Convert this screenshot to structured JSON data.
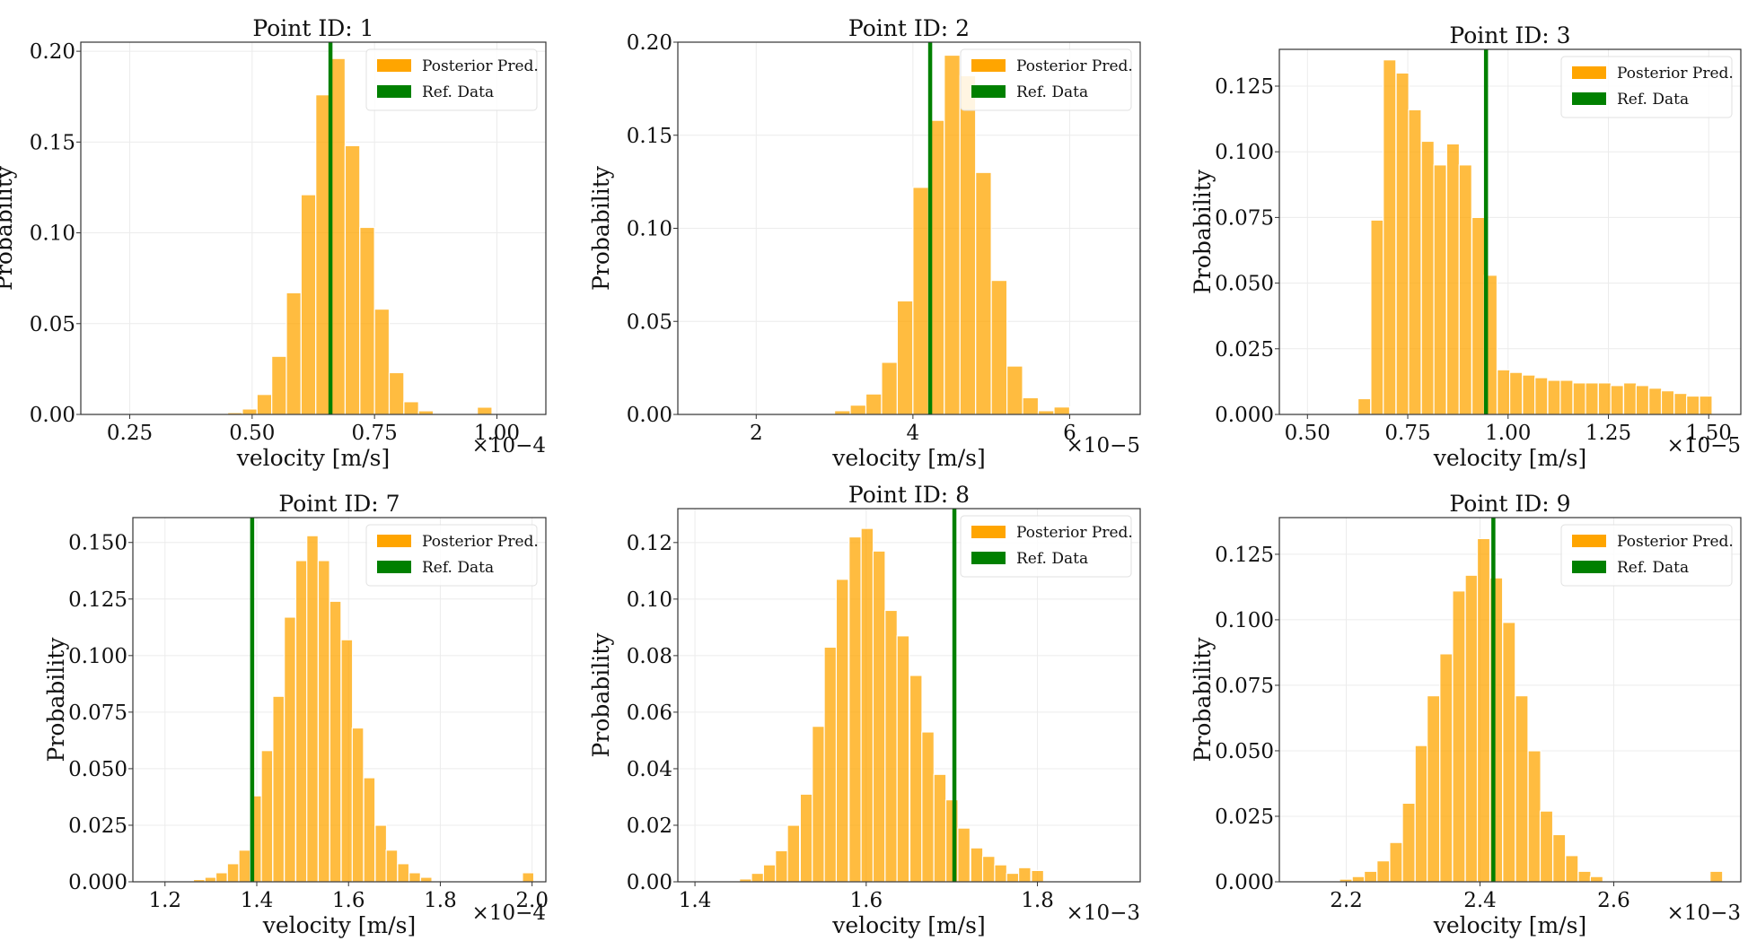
{
  "figure": {
    "colors": {
      "posterior": "#ffa500",
      "reference": "#008000"
    },
    "legend": {
      "posterior_label": "Posterior Pred.",
      "reference_label": "Ref. Data",
      "placement": "top-right"
    }
  },
  "chart_data": [
    {
      "type": "bar",
      "title": "Point ID: 1",
      "xlabel": "velocity [m/s]",
      "ylabel": "Probability",
      "multiplier": "×10−4",
      "xlim": [
        0.15,
        1.1
      ],
      "ylim": [
        0,
        0.205
      ],
      "xticks": [
        {
          "v": 0.25,
          "t": "0.25"
        },
        {
          "v": 0.5,
          "t": "0.50"
        },
        {
          "v": 0.75,
          "t": "0.75"
        },
        {
          "v": 1.0,
          "t": "1.00"
        }
      ],
      "yticks": [
        {
          "v": 0,
          "t": "0.00"
        },
        {
          "v": 0.05,
          "t": "0.05"
        },
        {
          "v": 0.1,
          "t": "0.10"
        },
        {
          "v": 0.15,
          "t": "0.15"
        },
        {
          "v": 0.2,
          "t": "0.20"
        }
      ],
      "bin_width": 0.03,
      "bins": [
        [
          0.45,
          0.001
        ],
        [
          0.48,
          0.003
        ],
        [
          0.51,
          0.011
        ],
        [
          0.54,
          0.032
        ],
        [
          0.57,
          0.067
        ],
        [
          0.6,
          0.121
        ],
        [
          0.63,
          0.176
        ],
        [
          0.66,
          0.196
        ],
        [
          0.69,
          0.148
        ],
        [
          0.72,
          0.103
        ],
        [
          0.75,
          0.058
        ],
        [
          0.78,
          0.023
        ],
        [
          0.81,
          0.007
        ],
        [
          0.84,
          0.002
        ],
        [
          0.96,
          0.004
        ]
      ],
      "reference": 0.66,
      "grid": true,
      "grid_x": [
        0.25,
        0.5,
        0.75,
        1.0
      ],
      "grid_y": [
        0.05,
        0.1,
        0.15,
        0.2
      ]
    },
    {
      "type": "bar",
      "title": "Point ID: 2",
      "xlabel": "velocity [m/s]",
      "ylabel": "Probability",
      "multiplier": "×10−5",
      "xlim": [
        1.0,
        6.9
      ],
      "ylim": [
        0,
        0.2
      ],
      "xticks": [
        {
          "v": 2,
          "t": "2"
        },
        {
          "v": 4,
          "t": "4"
        },
        {
          "v": 6,
          "t": "6"
        }
      ],
      "yticks": [
        {
          "v": 0,
          "t": "0.00"
        },
        {
          "v": 0.05,
          "t": "0.05"
        },
        {
          "v": 0.1,
          "t": "0.10"
        },
        {
          "v": 0.15,
          "t": "0.15"
        },
        {
          "v": 0.2,
          "t": "0.20"
        }
      ],
      "bin_width": 0.2,
      "bins": [
        [
          3.0,
          0.002
        ],
        [
          3.2,
          0.005
        ],
        [
          3.4,
          0.011
        ],
        [
          3.6,
          0.028
        ],
        [
          3.8,
          0.061
        ],
        [
          4.0,
          0.122
        ],
        [
          4.2,
          0.158
        ],
        [
          4.4,
          0.193
        ],
        [
          4.6,
          0.182
        ],
        [
          4.8,
          0.13
        ],
        [
          5.0,
          0.072
        ],
        [
          5.2,
          0.026
        ],
        [
          5.4,
          0.009
        ],
        [
          5.6,
          0.002
        ],
        [
          5.8,
          0.004
        ]
      ],
      "reference": 4.22,
      "grid": true,
      "grid_x": [
        2,
        4,
        6
      ],
      "grid_y": [
        0.05,
        0.1,
        0.15,
        0.2
      ]
    },
    {
      "type": "bar",
      "title": "Point ID: 3",
      "xlabel": "velocity [m/s]",
      "ylabel": "Probability",
      "multiplier": "×10−5",
      "xlim": [
        0.43,
        1.58
      ],
      "ylim": [
        0,
        0.139
      ],
      "xticks": [
        {
          "v": 0.5,
          "t": "0.50"
        },
        {
          "v": 0.75,
          "t": "0.75"
        },
        {
          "v": 1.0,
          "t": "1.00"
        },
        {
          "v": 1.25,
          "t": "1.25"
        },
        {
          "v": 1.5,
          "t": "1.50"
        }
      ],
      "yticks": [
        {
          "v": 0,
          "t": "0.000"
        },
        {
          "v": 0.025,
          "t": "0.025"
        },
        {
          "v": 0.05,
          "t": "0.050"
        },
        {
          "v": 0.075,
          "t": "0.075"
        },
        {
          "v": 0.1,
          "t": "0.100"
        },
        {
          "v": 0.125,
          "t": "0.125"
        }
      ],
      "bin_width": 0.0315,
      "bins": [
        [
          0.626,
          0.006
        ],
        [
          0.658,
          0.074
        ],
        [
          0.689,
          0.135
        ],
        [
          0.721,
          0.13
        ],
        [
          0.752,
          0.116
        ],
        [
          0.784,
          0.104
        ],
        [
          0.815,
          0.095
        ],
        [
          0.847,
          0.103
        ],
        [
          0.878,
          0.095
        ],
        [
          0.91,
          0.075
        ],
        [
          0.941,
          0.053
        ],
        [
          0.973,
          0.017
        ],
        [
          1.004,
          0.016
        ],
        [
          1.036,
          0.015
        ],
        [
          1.067,
          0.014
        ],
        [
          1.099,
          0.013
        ],
        [
          1.13,
          0.013
        ],
        [
          1.162,
          0.012
        ],
        [
          1.193,
          0.012
        ],
        [
          1.225,
          0.012
        ],
        [
          1.256,
          0.011
        ],
        [
          1.288,
          0.012
        ],
        [
          1.319,
          0.011
        ],
        [
          1.351,
          0.01
        ],
        [
          1.382,
          0.009
        ],
        [
          1.414,
          0.008
        ],
        [
          1.445,
          0.007
        ],
        [
          1.477,
          0.007
        ]
      ],
      "reference": 0.945,
      "grid": true,
      "grid_x": [
        0.5,
        0.75,
        1.0,
        1.25,
        1.5
      ],
      "grid_y": [
        0.025,
        0.05,
        0.075,
        0.1,
        0.125
      ]
    },
    {
      "type": "bar",
      "title": "Point ID: 7",
      "xlabel": "velocity [m/s]",
      "ylabel": "Probability",
      "multiplier": "×10−4",
      "xlim": [
        1.13,
        2.03
      ],
      "ylim": [
        0,
        0.161
      ],
      "xticks": [
        {
          "v": 1.2,
          "t": "1.2"
        },
        {
          "v": 1.4,
          "t": "1.4"
        },
        {
          "v": 1.6,
          "t": "1.6"
        },
        {
          "v": 1.8,
          "t": "1.8"
        },
        {
          "v": 2.0,
          "t": "2.0"
        }
      ],
      "yticks": [
        {
          "v": 0,
          "t": "0.000"
        },
        {
          "v": 0.025,
          "t": "0.025"
        },
        {
          "v": 0.05,
          "t": "0.050"
        },
        {
          "v": 0.075,
          "t": "0.075"
        },
        {
          "v": 0.1,
          "t": "0.100"
        },
        {
          "v": 0.125,
          "t": "0.125"
        },
        {
          "v": 0.15,
          "t": "0.150"
        }
      ],
      "bin_width": 0.0247,
      "bins": [
        [
          1.262,
          0.001
        ],
        [
          1.287,
          0.002
        ],
        [
          1.311,
          0.004
        ],
        [
          1.336,
          0.008
        ],
        [
          1.361,
          0.014
        ],
        [
          1.386,
          0.038
        ],
        [
          1.41,
          0.058
        ],
        [
          1.435,
          0.082
        ],
        [
          1.46,
          0.117
        ],
        [
          1.485,
          0.142
        ],
        [
          1.509,
          0.153
        ],
        [
          1.534,
          0.142
        ],
        [
          1.559,
          0.124
        ],
        [
          1.584,
          0.107
        ],
        [
          1.608,
          0.068
        ],
        [
          1.633,
          0.046
        ],
        [
          1.658,
          0.025
        ],
        [
          1.682,
          0.014
        ],
        [
          1.707,
          0.008
        ],
        [
          1.732,
          0.004
        ],
        [
          1.757,
          0.002
        ],
        [
          1.979,
          0.004
        ]
      ],
      "reference": 1.39,
      "grid": true,
      "grid_x": [
        1.2,
        1.4,
        1.6,
        1.8,
        2.0
      ],
      "grid_y": [
        0.025,
        0.05,
        0.075,
        0.1,
        0.125,
        0.15
      ]
    },
    {
      "type": "bar",
      "title": "Point ID: 8",
      "xlabel": "velocity [m/s]",
      "ylabel": "Probability",
      "multiplier": "×10−3",
      "xlim": [
        1.38,
        1.92
      ],
      "ylim": [
        0,
        0.132
      ],
      "xticks": [
        {
          "v": 1.4,
          "t": "1.4"
        },
        {
          "v": 1.6,
          "t": "1.6"
        },
        {
          "v": 1.8,
          "t": "1.8"
        }
      ],
      "yticks": [
        {
          "v": 0,
          "t": "0.00"
        },
        {
          "v": 0.02,
          "t": "0.02"
        },
        {
          "v": 0.04,
          "t": "0.04"
        },
        {
          "v": 0.06,
          "t": "0.06"
        },
        {
          "v": 0.08,
          "t": "0.08"
        },
        {
          "v": 0.1,
          "t": "0.10"
        },
        {
          "v": 0.12,
          "t": "0.12"
        }
      ],
      "bin_width": 0.0142,
      "bins": [
        [
          1.452,
          0.001
        ],
        [
          1.466,
          0.003
        ],
        [
          1.48,
          0.006
        ],
        [
          1.494,
          0.011
        ],
        [
          1.508,
          0.02
        ],
        [
          1.523,
          0.031
        ],
        [
          1.537,
          0.055
        ],
        [
          1.551,
          0.083
        ],
        [
          1.565,
          0.107
        ],
        [
          1.58,
          0.122
        ],
        [
          1.594,
          0.125
        ],
        [
          1.608,
          0.117
        ],
        [
          1.622,
          0.096
        ],
        [
          1.636,
          0.087
        ],
        [
          1.651,
          0.073
        ],
        [
          1.665,
          0.053
        ],
        [
          1.679,
          0.038
        ],
        [
          1.693,
          0.029
        ],
        [
          1.707,
          0.019
        ],
        [
          1.722,
          0.012
        ],
        [
          1.736,
          0.009
        ],
        [
          1.75,
          0.006
        ],
        [
          1.764,
          0.003
        ],
        [
          1.778,
          0.005
        ],
        [
          1.793,
          0.004
        ]
      ],
      "reference": 1.703,
      "grid": true,
      "grid_x": [
        1.4,
        1.6,
        1.8
      ],
      "grid_y": [
        0.02,
        0.04,
        0.06,
        0.08,
        0.1,
        0.12
      ]
    },
    {
      "type": "bar",
      "title": "Point ID: 9",
      "xlabel": "velocity [m/s]",
      "ylabel": "Probability",
      "multiplier": "×10−3",
      "xlim": [
        2.1,
        2.79
      ],
      "ylim": [
        0,
        0.139
      ],
      "xticks": [
        {
          "v": 2.2,
          "t": "2.2"
        },
        {
          "v": 2.4,
          "t": "2.4"
        },
        {
          "v": 2.6,
          "t": "2.6"
        }
      ],
      "yticks": [
        {
          "v": 0,
          "t": "0.000"
        },
        {
          "v": 0.025,
          "t": "0.025"
        },
        {
          "v": 0.05,
          "t": "0.050"
        },
        {
          "v": 0.075,
          "t": "0.075"
        },
        {
          "v": 0.1,
          "t": "0.100"
        },
        {
          "v": 0.125,
          "t": "0.125"
        }
      ],
      "bin_width": 0.0188,
      "bins": [
        [
          2.19,
          0.001
        ],
        [
          2.209,
          0.002
        ],
        [
          2.227,
          0.004
        ],
        [
          2.246,
          0.008
        ],
        [
          2.265,
          0.015
        ],
        [
          2.284,
          0.03
        ],
        [
          2.303,
          0.052
        ],
        [
          2.321,
          0.071
        ],
        [
          2.34,
          0.087
        ],
        [
          2.359,
          0.111
        ],
        [
          2.378,
          0.117
        ],
        [
          2.396,
          0.131
        ],
        [
          2.415,
          0.116
        ],
        [
          2.434,
          0.099
        ],
        [
          2.453,
          0.071
        ],
        [
          2.472,
          0.05
        ],
        [
          2.49,
          0.027
        ],
        [
          2.509,
          0.018
        ],
        [
          2.528,
          0.01
        ],
        [
          2.547,
          0.004
        ],
        [
          2.565,
          0.002
        ],
        [
          2.744,
          0.004
        ]
      ],
      "reference": 2.42,
      "grid": true,
      "grid_x": [
        2.2,
        2.4,
        2.6
      ],
      "grid_y": [
        0.025,
        0.05,
        0.075,
        0.1,
        0.125
      ]
    }
  ]
}
